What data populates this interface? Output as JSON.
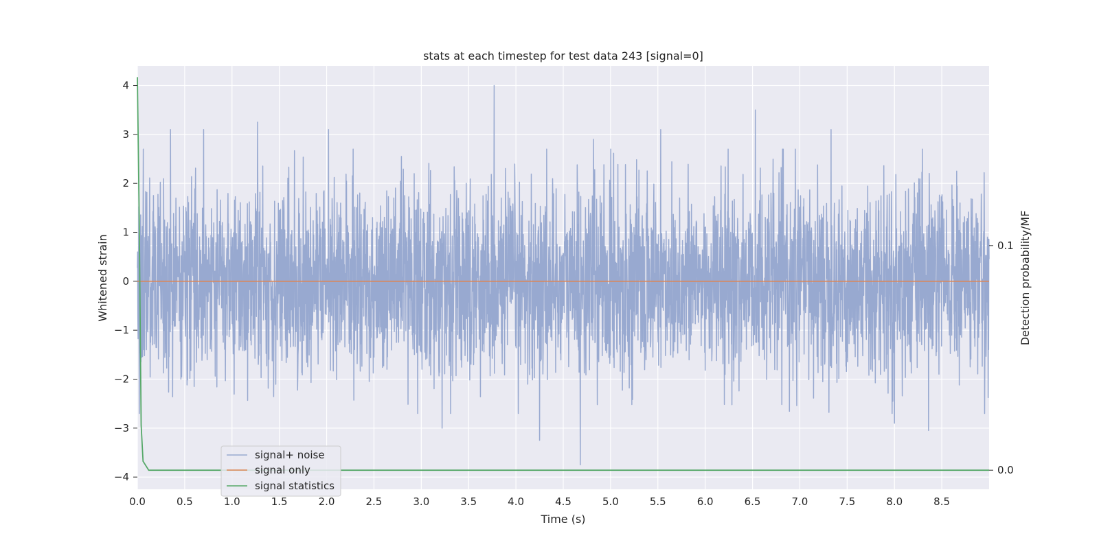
{
  "chart_data": {
    "type": "line",
    "title": "stats at each timestep for test data 243 [signal=0]",
    "xlabel": "Time (s)",
    "ylabel": "Whitened strain",
    "y2label": "Detection probability/MF",
    "xlim": [
      0,
      9.0
    ],
    "ylim": [
      -4.25,
      4.4
    ],
    "y2lim": [
      -0.0085,
      0.18
    ],
    "x_ticks": [
      "0.0",
      "0.5",
      "1.0",
      "1.5",
      "2.0",
      "2.5",
      "3.0",
      "3.5",
      "4.0",
      "4.5",
      "5.0",
      "5.5",
      "6.0",
      "6.5",
      "7.0",
      "7.5",
      "8.0",
      "8.5"
    ],
    "y_ticks": [
      "4",
      "3",
      "2",
      "1",
      "0",
      "−1",
      "−2",
      "−3",
      "−4"
    ],
    "y2_ticks": [
      "0.1",
      "0.0"
    ],
    "grid": true,
    "legend_position": "lower-left",
    "series": [
      {
        "name": "signal+ noise",
        "color": "#98a9d0",
        "note_values": "dense whitened-noise trace, roughly Gaussian with unit variance over 0–9 s",
        "peaks": [
          {
            "x": 0.35,
            "y": 3.1
          },
          {
            "x": 0.7,
            "y": 3.1
          },
          {
            "x": 1.27,
            "y": 3.25
          },
          {
            "x": 2.02,
            "y": 3.1
          },
          {
            "x": 3.77,
            "y": 4.0
          },
          {
            "x": 4.82,
            "y": 2.9
          },
          {
            "x": 5.53,
            "y": 3.1
          },
          {
            "x": 6.53,
            "y": 3.5
          },
          {
            "x": 7.33,
            "y": 3.1
          },
          {
            "x": 3.22,
            "y": -3.0
          },
          {
            "x": 4.25,
            "y": -3.25
          },
          {
            "x": 4.68,
            "y": -3.75
          },
          {
            "x": 8.0,
            "y": -2.9
          },
          {
            "x": 8.36,
            "y": -3.05
          }
        ]
      },
      {
        "name": "signal only",
        "color": "#dd8452",
        "x": [
          0,
          9.0
        ],
        "y": [
          0,
          0
        ]
      },
      {
        "name": "signal statistics",
        "color": "#55a868",
        "axis": "right",
        "x": [
          0,
          0.02,
          0.04,
          0.06,
          0.12,
          9.0
        ],
        "y": [
          0.175,
          0.11,
          0.02,
          0.004,
          0.0,
          0.0
        ]
      }
    ]
  }
}
